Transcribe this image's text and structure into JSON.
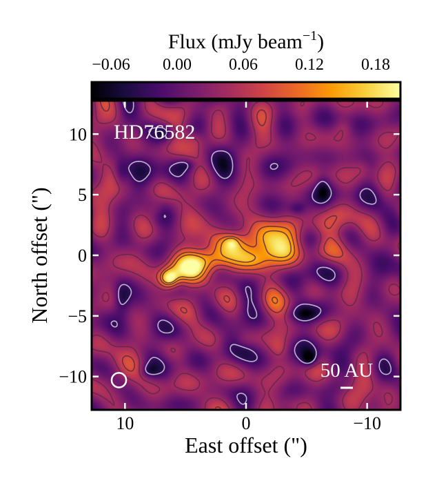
{
  "chart_data": {
    "type": "heatmap",
    "object_label": "HD76582",
    "colorbar": {
      "label_main": "Flux (mJy beam",
      "label_exp": "−1",
      "label_close": ")",
      "ticks": [
        {
          "value": -0.06,
          "label": "−0.06"
        },
        {
          "value": 0.0,
          "label": "0.00"
        },
        {
          "value": 0.06,
          "label": "0.06"
        },
        {
          "value": 0.12,
          "label": "0.12"
        },
        {
          "value": 0.18,
          "label": "0.18"
        }
      ],
      "range": [
        -0.0775,
        0.2025
      ],
      "colormap": "inferno",
      "colors": [
        "#000004",
        "#1b0c41",
        "#4a0c6b",
        "#781c6d",
        "#a52c60",
        "#cf4446",
        "#ed6925",
        "#fb9b06",
        "#f7d13d",
        "#fcffa4"
      ]
    },
    "x_axis": {
      "label": "East offset (\")",
      "range": [
        12.75,
        -12.75
      ],
      "ticks": [
        {
          "value": 10,
          "label": "10"
        },
        {
          "value": 0,
          "label": "0"
        },
        {
          "value": -10,
          "label": "−10"
        }
      ]
    },
    "y_axis": {
      "label": "North offset (\")",
      "range": [
        -12.75,
        12.75
      ],
      "ticks": [
        {
          "value": 10,
          "label": "10"
        },
        {
          "value": 5,
          "label": "5"
        },
        {
          "value": 0,
          "label": "0"
        },
        {
          "value": -5,
          "label": "−5"
        },
        {
          "value": -10,
          "label": "−10"
        }
      ]
    },
    "scale_bar_label": "50 AU",
    "beam": {
      "x": 10.5,
      "y": -10.3,
      "major": 1.2,
      "minor": 1.2
    },
    "background_level": 0.02,
    "disk_components": [
      {
        "x": 6.4,
        "y": -1.9,
        "sx": 0.55,
        "sy": 0.55,
        "amp": 0.165
      },
      {
        "x": 5.4,
        "y": -1.4,
        "sx": 1.3,
        "sy": 0.8,
        "amp": 0.06
      },
      {
        "x": 3.6,
        "y": -0.6,
        "sx": 1.6,
        "sy": 0.9,
        "amp": 0.09
      },
      {
        "x": 2.6,
        "y": -0.3,
        "sx": 1.1,
        "sy": 0.6,
        "amp": 0.05
      },
      {
        "x": 1.4,
        "y": 1.0,
        "sx": 1.3,
        "sy": 0.8,
        "amp": 0.09
      },
      {
        "x": 1.2,
        "y": 1.1,
        "sx": 0.4,
        "sy": 0.35,
        "amp": 0.05
      },
      {
        "x": -1.6,
        "y": 1.3,
        "sx": 1.0,
        "sy": 0.9,
        "amp": 0.1
      },
      {
        "x": -0.7,
        "y": -0.3,
        "sx": 0.9,
        "sy": 0.6,
        "amp": 0.06
      },
      {
        "x": -3.8,
        "y": 1.5,
        "sx": 1.0,
        "sy": 0.9,
        "amp": 0.085
      },
      {
        "x": -2.6,
        "y": 0.3,
        "sx": 1.0,
        "sy": 0.7,
        "amp": 0.05
      },
      {
        "x": -5.6,
        "y": 2.3,
        "sx": 1.2,
        "sy": 0.6,
        "amp": 0.035
      },
      {
        "x": 0.4,
        "y": 0.1,
        "sx": 6.0,
        "sy": 1.6,
        "amp": 0.03
      }
    ],
    "negative_blobs": [
      {
        "x": 10.3,
        "y": -3.5,
        "sx": 0.5,
        "sy": 0.9,
        "amp": -0.07
      },
      {
        "x": -5.2,
        "y": -8.5,
        "sx": 0.45,
        "sy": 0.45,
        "amp": -0.085
      },
      {
        "x": -4.7,
        "y": -4.8,
        "sx": 0.9,
        "sy": 0.45,
        "amp": -0.055
      },
      {
        "x": 4.9,
        "y": 7.5,
        "sx": 0.6,
        "sy": 0.4,
        "amp": -0.05
      },
      {
        "x": 10.4,
        "y": 6.8,
        "sx": 0.4,
        "sy": 0.8,
        "amp": -0.05
      },
      {
        "x": -6.3,
        "y": 5.5,
        "sx": 0.4,
        "sy": 0.8,
        "amp": -0.05
      },
      {
        "x": -4.2,
        "y": 3.9,
        "sx": 0.5,
        "sy": 0.4,
        "amp": -0.05
      },
      {
        "x": 8.1,
        "y": -9.5,
        "sx": 0.5,
        "sy": 0.4,
        "amp": -0.05
      },
      {
        "x": 6.7,
        "y": 10.2,
        "sx": 0.5,
        "sy": 0.5,
        "amp": -0.05
      }
    ],
    "noise_blobs": [
      {
        "x": -11.6,
        "y": 5.1,
        "sx": 0.8,
        "sy": 1.0,
        "amp": 0.04
      },
      {
        "x": 9.2,
        "y": -9.0,
        "sx": 1.2,
        "sy": 0.9,
        "amp": 0.035
      },
      {
        "x": -11.8,
        "y": -11.2,
        "sx": 0.7,
        "sy": 1.2,
        "amp": 0.045
      },
      {
        "x": 10.7,
        "y": 12.0,
        "sx": 0.6,
        "sy": 0.8,
        "amp": 0.03
      },
      {
        "x": -3.5,
        "y": -12.2,
        "sx": 0.7,
        "sy": 0.6,
        "amp": 0.03
      },
      {
        "x": -7.7,
        "y": -10.0,
        "sx": 0.6,
        "sy": 0.5,
        "amp": 0.03
      },
      {
        "x": 0.2,
        "y": -7.0,
        "sx": 0.6,
        "sy": 0.5,
        "amp": 0.028
      },
      {
        "x": -9.5,
        "y": 7.2,
        "sx": 0.5,
        "sy": 0.6,
        "amp": 0.028
      },
      {
        "x": 7.5,
        "y": 3.8,
        "sx": 0.5,
        "sy": 0.5,
        "amp": 0.028
      },
      {
        "x": -2.7,
        "y": -7.6,
        "sx": 0.5,
        "sy": 0.5,
        "amp": 0.026
      },
      {
        "x": 4.2,
        "y": 9.5,
        "sx": 0.5,
        "sy": 0.5,
        "amp": 0.026
      },
      {
        "x": -8.0,
        "y": 10.6,
        "sx": 0.5,
        "sy": 0.5,
        "amp": 0.026
      }
    ],
    "contour_levels": [
      0.045,
      0.08,
      0.12,
      0.15
    ],
    "negative_contour_level": -0.025
  }
}
